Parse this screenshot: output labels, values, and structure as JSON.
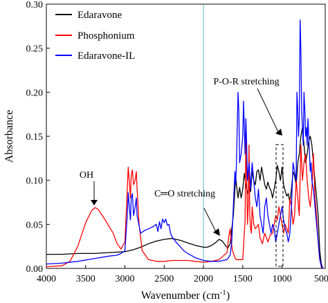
{
  "chart_data": {
    "type": "line",
    "xlabel_main": "Wavenumber (cm",
    "xlabel_sup": "-1",
    "xlabel_tail": ")",
    "ylabel": "Absorbance",
    "xlim": [
      4000,
      450
    ],
    "ylim": [
      0,
      0.3
    ],
    "x_reversed": true,
    "xticks": [
      4000,
      3500,
      3000,
      2500,
      2000,
      1500,
      1000,
      500
    ],
    "yticks": [
      0.0,
      0.05,
      0.1,
      0.15,
      0.2,
      0.25,
      0.3
    ],
    "grid": false,
    "legend_position": "top-left",
    "series": [
      {
        "name": "Edaravone",
        "color": "#000000",
        "points": [
          [
            4000,
            0.016
          ],
          [
            3800,
            0.016
          ],
          [
            3600,
            0.017
          ],
          [
            3400,
            0.017
          ],
          [
            3200,
            0.018
          ],
          [
            3000,
            0.019
          ],
          [
            2900,
            0.021
          ],
          [
            2800,
            0.024
          ],
          [
            2700,
            0.028
          ],
          [
            2600,
            0.031
          ],
          [
            2500,
            0.033
          ],
          [
            2400,
            0.034
          ],
          [
            2300,
            0.032
          ],
          [
            2200,
            0.029
          ],
          [
            2100,
            0.026
          ],
          [
            2000,
            0.024
          ],
          [
            1950,
            0.024
          ],
          [
            1900,
            0.026
          ],
          [
            1850,
            0.029
          ],
          [
            1800,
            0.033
          ],
          [
            1760,
            0.031
          ],
          [
            1720,
            0.026
          ],
          [
            1690,
            0.023
          ],
          [
            1660,
            0.028
          ],
          [
            1640,
            0.045
          ],
          [
            1620,
            0.06
          ],
          [
            1600,
            0.09
          ],
          [
            1590,
            0.105
          ],
          [
            1580,
            0.095
          ],
          [
            1560,
            0.08
          ],
          [
            1540,
            0.092
          ],
          [
            1520,
            0.08
          ],
          [
            1500,
            0.09
          ],
          [
            1480,
            0.108
          ],
          [
            1460,
            0.095
          ],
          [
            1440,
            0.085
          ],
          [
            1420,
            0.094
          ],
          [
            1400,
            0.087
          ],
          [
            1380,
            0.11
          ],
          [
            1360,
            0.1
          ],
          [
            1340,
            0.095
          ],
          [
            1320,
            0.11
          ],
          [
            1300,
            0.112
          ],
          [
            1280,
            0.1
          ],
          [
            1260,
            0.115
          ],
          [
            1240,
            0.105
          ],
          [
            1220,
            0.095
          ],
          [
            1200,
            0.09
          ],
          [
            1180,
            0.098
          ],
          [
            1160,
            0.092
          ],
          [
            1140,
            0.088
          ],
          [
            1120,
            0.08
          ],
          [
            1100,
            0.09
          ],
          [
            1080,
            0.1
          ],
          [
            1060,
            0.117
          ],
          [
            1040,
            0.11
          ],
          [
            1020,
            0.1
          ],
          [
            1000,
            0.115
          ],
          [
            980,
            0.095
          ],
          [
            960,
            0.088
          ],
          [
            940,
            0.082
          ],
          [
            920,
            0.085
          ],
          [
            900,
            0.075
          ],
          [
            880,
            0.09
          ],
          [
            860,
            0.11
          ],
          [
            840,
            0.105
          ],
          [
            820,
            0.095
          ],
          [
            800,
            0.12
          ],
          [
            780,
            0.13
          ],
          [
            760,
            0.15
          ],
          [
            740,
            0.16
          ],
          [
            720,
            0.14
          ],
          [
            700,
            0.12
          ],
          [
            680,
            0.13
          ],
          [
            660,
            0.145
          ],
          [
            640,
            0.15
          ],
          [
            620,
            0.14
          ],
          [
            600,
            0.12
          ],
          [
            580,
            0.1
          ],
          [
            560,
            0.08
          ],
          [
            540,
            0.06
          ],
          [
            520,
            0.02
          ],
          [
            500,
            0.005
          ],
          [
            480,
            0.0
          ]
        ]
      },
      {
        "name": "Phosphonium",
        "color": "#ff0000",
        "points": [
          [
            4000,
            0.002
          ],
          [
            3800,
            0.003
          ],
          [
            3700,
            0.008
          ],
          [
            3600,
            0.025
          ],
          [
            3500,
            0.052
          ],
          [
            3420,
            0.066
          ],
          [
            3380,
            0.069
          ],
          [
            3340,
            0.067
          ],
          [
            3250,
            0.055
          ],
          [
            3150,
            0.04
          ],
          [
            3100,
            0.028
          ],
          [
            3050,
            0.022
          ],
          [
            3000,
            0.03
          ],
          [
            2970,
            0.09
          ],
          [
            2958,
            0.115
          ],
          [
            2945,
            0.1
          ],
          [
            2930,
            0.08
          ],
          [
            2920,
            0.105
          ],
          [
            2905,
            0.112
          ],
          [
            2890,
            0.095
          ],
          [
            2870,
            0.1
          ],
          [
            2855,
            0.11
          ],
          [
            2845,
            0.09
          ],
          [
            2820,
            0.05
          ],
          [
            2780,
            0.02
          ],
          [
            2700,
            0.01
          ],
          [
            2600,
            0.008
          ],
          [
            2500,
            0.008
          ],
          [
            2400,
            0.009
          ],
          [
            2300,
            0.009
          ],
          [
            2200,
            0.009
          ],
          [
            2100,
            0.008
          ],
          [
            2000,
            0.007
          ],
          [
            1900,
            0.008
          ],
          [
            1800,
            0.01
          ],
          [
            1750,
            0.014
          ],
          [
            1700,
            0.018
          ],
          [
            1680,
            0.035
          ],
          [
            1660,
            0.045
          ],
          [
            1650,
            0.033
          ],
          [
            1630,
            0.02
          ],
          [
            1600,
            0.012
          ],
          [
            1580,
            0.01
          ],
          [
            1500,
            0.01
          ],
          [
            1480,
            0.04
          ],
          [
            1470,
            0.055
          ],
          [
            1460,
            0.15
          ],
          [
            1455,
            0.13
          ],
          [
            1440,
            0.05
          ],
          [
            1430,
            0.07
          ],
          [
            1420,
            0.14
          ],
          [
            1410,
            0.06
          ],
          [
            1400,
            0.045
          ],
          [
            1390,
            0.04
          ],
          [
            1380,
            0.07
          ],
          [
            1370,
            0.06
          ],
          [
            1360,
            0.05
          ],
          [
            1340,
            0.045
          ],
          [
            1300,
            0.05
          ],
          [
            1280,
            0.035
          ],
          [
            1250,
            0.028
          ],
          [
            1220,
            0.04
          ],
          [
            1200,
            0.035
          ],
          [
            1180,
            0.03
          ],
          [
            1150,
            0.038
          ],
          [
            1120,
            0.04
          ],
          [
            1100,
            0.05
          ],
          [
            1080,
            0.06
          ],
          [
            1060,
            0.055
          ],
          [
            1040,
            0.07
          ],
          [
            1020,
            0.06
          ],
          [
            1000,
            0.05
          ],
          [
            980,
            0.04
          ],
          [
            960,
            0.05
          ],
          [
            940,
            0.045
          ],
          [
            920,
            0.04
          ],
          [
            900,
            0.08
          ],
          [
            880,
            0.07
          ],
          [
            860,
            0.05
          ],
          [
            840,
            0.06
          ],
          [
            820,
            0.1
          ],
          [
            800,
            0.08
          ],
          [
            780,
            0.06
          ],
          [
            760,
            0.14
          ],
          [
            740,
            0.1
          ],
          [
            720,
            0.12
          ],
          [
            700,
            0.13
          ],
          [
            680,
            0.1
          ],
          [
            660,
            0.08
          ],
          [
            640,
            0.07
          ],
          [
            620,
            0.09
          ],
          [
            600,
            0.13
          ],
          [
            580,
            0.08
          ],
          [
            560,
            0.06
          ],
          [
            540,
            0.03
          ],
          [
            520,
            0.01
          ],
          [
            500,
            0.002
          ],
          [
            480,
            0.0
          ]
        ]
      },
      {
        "name": "Edaravone-IL",
        "color": "#0000ff",
        "points": [
          [
            4000,
            0.005
          ],
          [
            3800,
            0.006
          ],
          [
            3600,
            0.008
          ],
          [
            3400,
            0.011
          ],
          [
            3200,
            0.014
          ],
          [
            3100,
            0.015
          ],
          [
            3050,
            0.017
          ],
          [
            3000,
            0.02
          ],
          [
            2970,
            0.06
          ],
          [
            2958,
            0.086
          ],
          [
            2945,
            0.07
          ],
          [
            2930,
            0.055
          ],
          [
            2920,
            0.08
          ],
          [
            2905,
            0.085
          ],
          [
            2890,
            0.06
          ],
          [
            2870,
            0.07
          ],
          [
            2855,
            0.08
          ],
          [
            2845,
            0.06
          ],
          [
            2800,
            0.04
          ],
          [
            2750,
            0.043
          ],
          [
            2700,
            0.045
          ],
          [
            2650,
            0.047
          ],
          [
            2600,
            0.05
          ],
          [
            2580,
            0.042
          ],
          [
            2560,
            0.053
          ],
          [
            2540,
            0.045
          ],
          [
            2520,
            0.056
          ],
          [
            2500,
            0.052
          ],
          [
            2480,
            0.056
          ],
          [
            2460,
            0.049
          ],
          [
            2440,
            0.05
          ],
          [
            2420,
            0.04
          ],
          [
            2400,
            0.036
          ],
          [
            2350,
            0.03
          ],
          [
            2300,
            0.025
          ],
          [
            2250,
            0.02
          ],
          [
            2200,
            0.017
          ],
          [
            2100,
            0.012
          ],
          [
            2000,
            0.009
          ],
          [
            1900,
            0.008
          ],
          [
            1800,
            0.008
          ],
          [
            1700,
            0.01
          ],
          [
            1660,
            0.015
          ],
          [
            1640,
            0.03
          ],
          [
            1620,
            0.07
          ],
          [
            1600,
            0.11
          ],
          [
            1590,
            0.095
          ],
          [
            1580,
            0.12
          ],
          [
            1560,
            0.2
          ],
          [
            1550,
            0.18
          ],
          [
            1540,
            0.12
          ],
          [
            1520,
            0.13
          ],
          [
            1500,
            0.15
          ],
          [
            1490,
            0.19
          ],
          [
            1480,
            0.16
          ],
          [
            1470,
            0.13
          ],
          [
            1460,
            0.17
          ],
          [
            1450,
            0.14
          ],
          [
            1440,
            0.1
          ],
          [
            1420,
            0.12
          ],
          [
            1400,
            0.09
          ],
          [
            1380,
            0.12
          ],
          [
            1360,
            0.1
          ],
          [
            1340,
            0.08
          ],
          [
            1320,
            0.07
          ],
          [
            1300,
            0.09
          ],
          [
            1280,
            0.06
          ],
          [
            1260,
            0.05
          ],
          [
            1240,
            0.04
          ],
          [
            1220,
            0.07
          ],
          [
            1200,
            0.08
          ],
          [
            1180,
            0.06
          ],
          [
            1160,
            0.05
          ],
          [
            1140,
            0.04
          ],
          [
            1120,
            0.05
          ],
          [
            1100,
            0.045
          ],
          [
            1080,
            0.03
          ],
          [
            1060,
            0.04
          ],
          [
            1040,
            0.05
          ],
          [
            1020,
            0.06
          ],
          [
            1000,
            0.07
          ],
          [
            980,
            0.055
          ],
          [
            960,
            0.045
          ],
          [
            940,
            0.04
          ],
          [
            920,
            0.03
          ],
          [
            900,
            0.04
          ],
          [
            880,
            0.07
          ],
          [
            860,
            0.12
          ],
          [
            840,
            0.11
          ],
          [
            820,
            0.1
          ],
          [
            810,
            0.2
          ],
          [
            800,
            0.18
          ],
          [
            790,
            0.15
          ],
          [
            780,
            0.17
          ],
          [
            770,
            0.282
          ],
          [
            760,
            0.25
          ],
          [
            750,
            0.18
          ],
          [
            740,
            0.16
          ],
          [
            730,
            0.14
          ],
          [
            720,
            0.2
          ],
          [
            710,
            0.18
          ],
          [
            700,
            0.15
          ],
          [
            690,
            0.16
          ],
          [
            680,
            0.14
          ],
          [
            670,
            0.17
          ],
          [
            660,
            0.15
          ],
          [
            650,
            0.13
          ],
          [
            640,
            0.11
          ],
          [
            630,
            0.12
          ],
          [
            620,
            0.1
          ],
          [
            600,
            0.09
          ],
          [
            580,
            0.07
          ],
          [
            560,
            0.05
          ],
          [
            540,
            0.03
          ],
          [
            520,
            0.01
          ],
          [
            500,
            0.003
          ],
          [
            480,
            0.0
          ]
        ]
      }
    ],
    "annotations": {
      "oh_label": "OH",
      "co_label": "C═O stretching",
      "por_label": "P-O-R stretching"
    }
  }
}
